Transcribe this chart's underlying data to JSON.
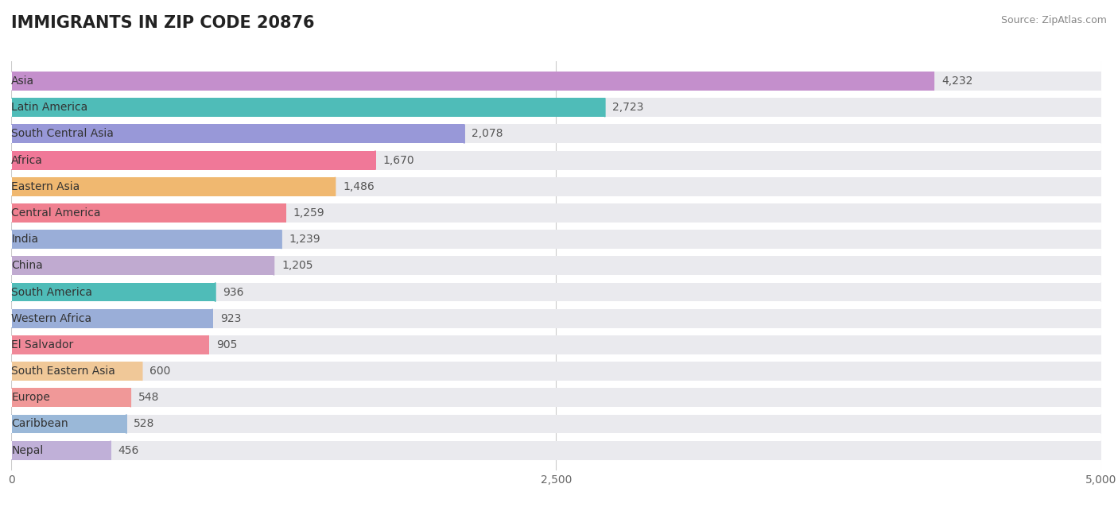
{
  "title": "IMMIGRANTS IN ZIP CODE 20876",
  "source": "Source: ZipAtlas.com",
  "categories": [
    "Asia",
    "Latin America",
    "South Central Asia",
    "Africa",
    "Eastern Asia",
    "Central America",
    "India",
    "China",
    "South America",
    "Western Africa",
    "El Salvador",
    "South Eastern Asia",
    "Europe",
    "Caribbean",
    "Nepal"
  ],
  "values": [
    4232,
    2723,
    2078,
    1670,
    1486,
    1259,
    1239,
    1205,
    936,
    923,
    905,
    600,
    548,
    528,
    456
  ],
  "colors": [
    "#c48fcc",
    "#4fbcb8",
    "#9898d8",
    "#f07898",
    "#f0b870",
    "#f08090",
    "#9aaed8",
    "#c0aad0",
    "#4fbcb8",
    "#9aaed8",
    "#f08898",
    "#f0c898",
    "#f09898",
    "#9ab8d8",
    "#c0b0d8"
  ],
  "bar_bg_color": "#eaeaee",
  "xlim": [
    0,
    5000
  ],
  "xticks": [
    0,
    2500,
    5000
  ],
  "background_color": "#ffffff",
  "title_fontsize": 15,
  "value_fontsize": 10,
  "label_fontsize": 10
}
